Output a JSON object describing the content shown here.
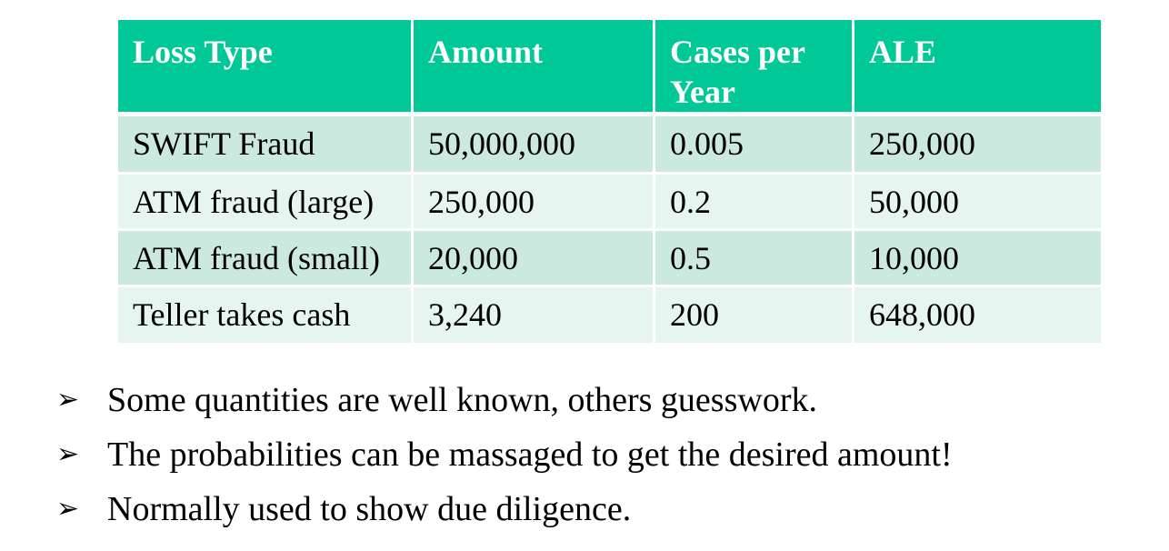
{
  "table": {
    "headers": [
      "Loss Type",
      "Amount",
      "Cases per Year",
      "ALE"
    ],
    "rows": [
      [
        "SWIFT Fraud",
        "50,000,000",
        "0.005",
        "250,000"
      ],
      [
        "ATM fraud (large)",
        "250,000",
        "0.2",
        "50,000"
      ],
      [
        "ATM fraud (small)",
        "20,000",
        "0.5",
        "10,000"
      ],
      [
        "Teller takes cash",
        "3,240",
        "200",
        "648,000"
      ]
    ]
  },
  "bullets": [
    "Some quantities are well known, others guesswork.",
    "The probabilities can be massaged to get the desired amount!",
    "Normally used to show due diligence."
  ],
  "bullet_marker": "➢",
  "colors": {
    "header_bg": "#00c896",
    "header_text": "#ffffff",
    "row_odd_bg": "#cce9df",
    "row_even_bg": "#e7f5f0"
  }
}
